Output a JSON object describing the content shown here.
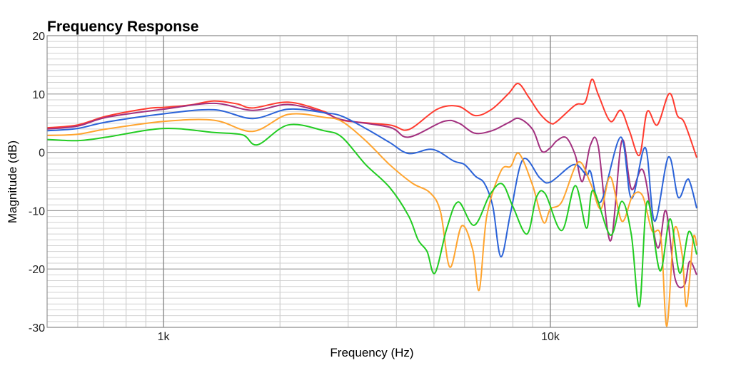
{
  "chart_data": {
    "type": "line",
    "title": "Frequency Response",
    "xlabel": "Frequency (Hz)",
    "ylabel": "Magnitude (dB)",
    "xscale": "log",
    "xlim": [
      500,
      24000
    ],
    "ylim": [
      -30,
      20
    ],
    "grid": true,
    "legend": "none",
    "x_ticks": [
      {
        "value": 1000,
        "label": "1k"
      },
      {
        "value": 10000,
        "label": "10k"
      }
    ],
    "y_ticks": [
      {
        "value": 20,
        "label": "20"
      },
      {
        "value": 10,
        "label": "10"
      },
      {
        "value": 0,
        "label": "0"
      },
      {
        "value": -10,
        "label": "-10"
      },
      {
        "value": -20,
        "label": "-20"
      },
      {
        "value": -30,
        "label": "-30"
      }
    ],
    "series": [
      {
        "color": "#ff3b2f",
        "points": [
          [
            500,
            4.2
          ],
          [
            600,
            4.7
          ],
          [
            712,
            6.2
          ],
          [
            907,
            7.5
          ],
          [
            1000,
            7.7
          ],
          [
            1170,
            8.1
          ],
          [
            1350,
            8.8
          ],
          [
            1550,
            8.3
          ],
          [
            1700,
            7.6
          ],
          [
            2100,
            8.6
          ],
          [
            2600,
            7.0
          ],
          [
            2890,
            5.5
          ],
          [
            3840,
            4.7
          ],
          [
            4300,
            3.9
          ],
          [
            5100,
            7.4
          ],
          [
            5780,
            7.9
          ],
          [
            6400,
            6.3
          ],
          [
            7060,
            7.4
          ],
          [
            7800,
            10.1
          ],
          [
            8260,
            11.8
          ],
          [
            8800,
            9.4
          ],
          [
            9400,
            6.6
          ],
          [
            10000,
            5.0
          ],
          [
            10400,
            5.3
          ],
          [
            11600,
            8.1
          ],
          [
            12300,
            8.6
          ],
          [
            12800,
            12.5
          ],
          [
            13300,
            9.9
          ],
          [
            14300,
            5.3
          ],
          [
            15200,
            7.2
          ],
          [
            16000,
            3.7
          ],
          [
            17000,
            -0.5
          ],
          [
            17800,
            7.0
          ],
          [
            18900,
            4.7
          ],
          [
            20300,
            10.1
          ],
          [
            21300,
            6.3
          ],
          [
            22200,
            5.1
          ],
          [
            23900,
            -0.9
          ]
        ]
      },
      {
        "color": "#a2307f",
        "points": [
          [
            500,
            4.0
          ],
          [
            600,
            4.5
          ],
          [
            712,
            6.0
          ],
          [
            1000,
            7.4
          ],
          [
            1350,
            8.4
          ],
          [
            1700,
            7.2
          ],
          [
            2100,
            8.2
          ],
          [
            2600,
            6.8
          ],
          [
            2890,
            5.6
          ],
          [
            3840,
            4.3
          ],
          [
            4300,
            2.6
          ],
          [
            5300,
            5.3
          ],
          [
            5800,
            5.0
          ],
          [
            6360,
            3.3
          ],
          [
            7060,
            3.7
          ],
          [
            7800,
            5.1
          ],
          [
            8300,
            5.8
          ],
          [
            9000,
            3.9
          ],
          [
            9500,
            0.2
          ],
          [
            10000,
            0.8
          ],
          [
            10400,
            2.0
          ],
          [
            11000,
            2.5
          ],
          [
            11600,
            -0.5
          ],
          [
            12100,
            -5.0
          ],
          [
            12700,
            1.3
          ],
          [
            13300,
            1.0
          ],
          [
            14300,
            -15.2
          ],
          [
            15300,
            2.0
          ],
          [
            16200,
            -6.3
          ],
          [
            17400,
            -3.2
          ],
          [
            18900,
            -16.3
          ],
          [
            19900,
            -10.0
          ],
          [
            21000,
            -21.6
          ],
          [
            22200,
            -22.8
          ],
          [
            22900,
            -18.7
          ],
          [
            23900,
            -21.0
          ]
        ]
      },
      {
        "color": "#2b63d8",
        "points": [
          [
            500,
            3.7
          ],
          [
            600,
            4.1
          ],
          [
            712,
            5.2
          ],
          [
            1000,
            6.6
          ],
          [
            1350,
            7.3
          ],
          [
            1700,
            5.8
          ],
          [
            2100,
            7.4
          ],
          [
            2600,
            6.8
          ],
          [
            2890,
            6.2
          ],
          [
            3330,
            4.1
          ],
          [
            3840,
            1.7
          ],
          [
            4300,
            -0.2
          ],
          [
            4960,
            0.5
          ],
          [
            5630,
            -1.5
          ],
          [
            6000,
            -2.1
          ],
          [
            6400,
            -4.1
          ],
          [
            6750,
            -5.3
          ],
          [
            7100,
            -9.3
          ],
          [
            7450,
            -17.9
          ],
          [
            7900,
            -10.2
          ],
          [
            8500,
            -1.2
          ],
          [
            9400,
            -4.4
          ],
          [
            10000,
            -5.1
          ],
          [
            11500,
            -2.1
          ],
          [
            12400,
            -3.9
          ],
          [
            12700,
            -3.3
          ],
          [
            13500,
            -8.5
          ],
          [
            15200,
            2.6
          ],
          [
            16200,
            -7.9
          ],
          [
            17600,
            0.8
          ],
          [
            18600,
            -11.8
          ],
          [
            20200,
            -0.8
          ],
          [
            21400,
            -7.7
          ],
          [
            22500,
            -4.8
          ],
          [
            23000,
            -5.3
          ],
          [
            23900,
            -9.6
          ]
        ]
      },
      {
        "color": "#ffa42e",
        "points": [
          [
            500,
            2.9
          ],
          [
            600,
            3.1
          ],
          [
            712,
            4.0
          ],
          [
            1000,
            5.3
          ],
          [
            1350,
            5.5
          ],
          [
            1700,
            3.6
          ],
          [
            2100,
            6.5
          ],
          [
            2600,
            6.0
          ],
          [
            2890,
            5.3
          ],
          [
            3330,
            2.0
          ],
          [
            3840,
            -2.1
          ],
          [
            4400,
            -5.3
          ],
          [
            4880,
            -6.9
          ],
          [
            5200,
            -10.2
          ],
          [
            5500,
            -19.7
          ],
          [
            5900,
            -12.6
          ],
          [
            6300,
            -16.7
          ],
          [
            6550,
            -23.6
          ],
          [
            6850,
            -10.9
          ],
          [
            7450,
            -3.2
          ],
          [
            7900,
            -2.4
          ],
          [
            8300,
            -0.2
          ],
          [
            9000,
            -5.7
          ],
          [
            9600,
            -12.0
          ],
          [
            10000,
            -9.7
          ],
          [
            10700,
            -8.5
          ],
          [
            11800,
            -1.7
          ],
          [
            12700,
            -5.3
          ],
          [
            13500,
            -9.7
          ],
          [
            14300,
            -4.2
          ],
          [
            15300,
            -11.8
          ],
          [
            16300,
            -7.5
          ],
          [
            17300,
            -7.4
          ],
          [
            18300,
            -13.4
          ],
          [
            19300,
            -14.6
          ],
          [
            20000,
            -29.8
          ],
          [
            20900,
            -13.3
          ],
          [
            21900,
            -17.5
          ],
          [
            22500,
            -26.4
          ],
          [
            23400,
            -14.8
          ],
          [
            23900,
            -16.0
          ]
        ]
      },
      {
        "color": "#22cc22",
        "points": [
          [
            500,
            2.2
          ],
          [
            600,
            2.0
          ],
          [
            712,
            2.6
          ],
          [
            1000,
            4.1
          ],
          [
            1350,
            3.4
          ],
          [
            1600,
            3.0
          ],
          [
            1750,
            1.3
          ],
          [
            2100,
            4.7
          ],
          [
            2600,
            3.7
          ],
          [
            2890,
            2.6
          ],
          [
            3330,
            -2.1
          ],
          [
            3840,
            -6.0
          ],
          [
            4300,
            -10.9
          ],
          [
            4550,
            -15.0
          ],
          [
            4800,
            -17.0
          ],
          [
            5030,
            -20.7
          ],
          [
            5400,
            -13.0
          ],
          [
            5780,
            -8.5
          ],
          [
            6350,
            -12.5
          ],
          [
            6970,
            -7.3
          ],
          [
            7500,
            -5.4
          ],
          [
            8000,
            -9.3
          ],
          [
            8700,
            -14.0
          ],
          [
            9200,
            -7.7
          ],
          [
            9700,
            -7.1
          ],
          [
            10700,
            -13.4
          ],
          [
            11600,
            -5.7
          ],
          [
            12400,
            -13.0
          ],
          [
            12900,
            -6.5
          ],
          [
            14300,
            -14.2
          ],
          [
            15300,
            -8.4
          ],
          [
            16200,
            -14.2
          ],
          [
            17000,
            -26.4
          ],
          [
            17800,
            -8.4
          ],
          [
            19200,
            -20.3
          ],
          [
            20400,
            -11.4
          ],
          [
            21600,
            -20.7
          ],
          [
            22800,
            -13.6
          ],
          [
            23900,
            -17.5
          ]
        ]
      }
    ]
  }
}
